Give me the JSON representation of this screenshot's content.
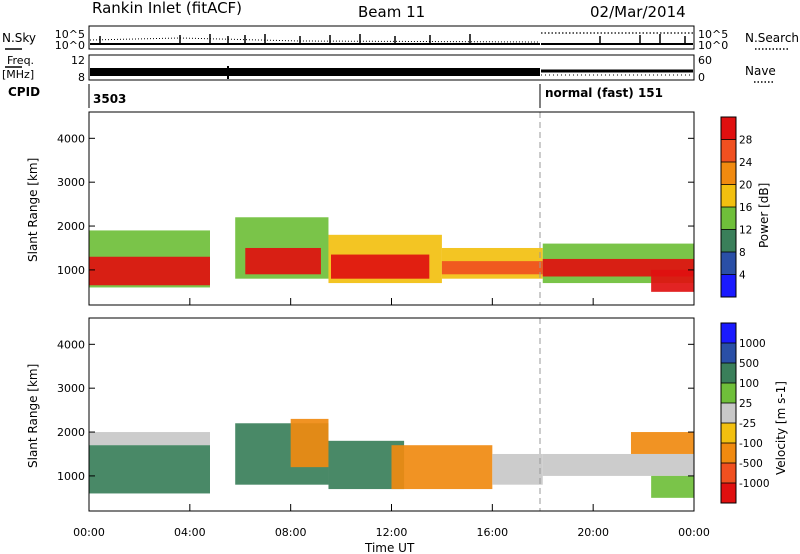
{
  "header": {
    "site": "Rankin Inlet (fitACF)",
    "beam": "Beam 11",
    "date": "02/Mar/2014"
  },
  "top_panels": {
    "nsky_label": "N.Sky",
    "nsky_ticks": [
      "10^5",
      "10^0"
    ],
    "nsearch_label": "N.Search",
    "nsearch_ticks": [
      "10^5",
      "10^0"
    ],
    "freq_label_1": "Freq.",
    "freq_label_2": "[MHz]",
    "freq_ticks": [
      "12",
      "8"
    ],
    "nave_label": "Nave",
    "nave_ticks": [
      "60",
      "0"
    ],
    "cpid_label": "CPID",
    "cpid_segments": [
      {
        "start_hour": 0,
        "text": "3503"
      },
      {
        "start_hour": 18,
        "text": "normal (fast) 151"
      }
    ]
  },
  "colors": {
    "power_scale": [
      "#1a1aff",
      "#2a4fa6",
      "#3a7f5a",
      "#6fbf3a",
      "#f2c010",
      "#f08a10",
      "#f05020",
      "#e01010"
    ],
    "velocity_scale": [
      "#e01010",
      "#f05020",
      "#f08a10",
      "#f2c010",
      "#c8c8c8",
      "#6fbf3a",
      "#3a7f5a",
      "#2a4fa6",
      "#1a1aff"
    ]
  },
  "chart_data": [
    {
      "type": "heatmap",
      "name": "power",
      "xlabel": "",
      "ylabel": "Slant Range [km]",
      "xlim": [
        "00:00",
        "24:00"
      ],
      "ylim": [
        200,
        4600
      ],
      "yticks": [
        "1000",
        "2000",
        "3000",
        "4000"
      ],
      "colorbar_label": "Power [dB]",
      "colorbar_ticks": [
        "4",
        "8",
        "12",
        "16",
        "20",
        "24",
        "28"
      ],
      "colorbar_range": [
        0,
        32
      ],
      "bands": [
        {
          "x0": 0.0,
          "x1": 4.8,
          "y0": 600,
          "y1": 1900,
          "level": 3
        },
        {
          "x0": 0.0,
          "x1": 4.8,
          "y0": 650,
          "y1": 1300,
          "level": 7
        },
        {
          "x0": 5.8,
          "x1": 9.5,
          "y0": 800,
          "y1": 2200,
          "level": 3
        },
        {
          "x0": 6.2,
          "x1": 9.2,
          "y0": 900,
          "y1": 1500,
          "level": 7
        },
        {
          "x0": 9.5,
          "x1": 14.0,
          "y0": 700,
          "y1": 1800,
          "level": 4
        },
        {
          "x0": 9.6,
          "x1": 13.5,
          "y0": 800,
          "y1": 1350,
          "level": 7
        },
        {
          "x0": 14.0,
          "x1": 18.0,
          "y0": 800,
          "y1": 1500,
          "level": 4
        },
        {
          "x0": 14.0,
          "x1": 18.0,
          "y0": 900,
          "y1": 1200,
          "level": 6
        },
        {
          "x0": 18.0,
          "x1": 24.0,
          "y0": 700,
          "y1": 1600,
          "level": 3
        },
        {
          "x0": 18.0,
          "x1": 24.0,
          "y0": 850,
          "y1": 1250,
          "level": 7
        },
        {
          "x0": 22.3,
          "x1": 24.0,
          "y0": 500,
          "y1": 1000,
          "level": 7
        }
      ]
    },
    {
      "type": "heatmap",
      "name": "velocity",
      "xlabel": "Time UT",
      "ylabel": "Slant Range [km]",
      "xlim": [
        "00:00",
        "24:00"
      ],
      "xticks": [
        "00:00",
        "04:00",
        "08:00",
        "12:00",
        "16:00",
        "20:00",
        "00:00"
      ],
      "ylim": [
        200,
        4600
      ],
      "yticks": [
        "1000",
        "2000",
        "3000",
        "4000"
      ],
      "colorbar_label": "Velocity [m s-1]",
      "colorbar_ticks": [
        "-1000",
        "-500",
        "-100",
        "-25",
        "25",
        "100",
        "500",
        "1000"
      ],
      "bands": [
        {
          "x0": 0.0,
          "x1": 4.8,
          "y0": 1700,
          "y1": 2000,
          "level": 4
        },
        {
          "x0": 0.0,
          "x1": 4.8,
          "y0": 600,
          "y1": 1700,
          "level": 6
        },
        {
          "x0": 5.8,
          "x1": 9.5,
          "y0": 800,
          "y1": 2200,
          "level": 6
        },
        {
          "x0": 8.0,
          "x1": 9.5,
          "y0": 1200,
          "y1": 2300,
          "level": 2
        },
        {
          "x0": 9.5,
          "x1": 12.5,
          "y0": 700,
          "y1": 1800,
          "level": 6
        },
        {
          "x0": 12.0,
          "x1": 16.0,
          "y0": 700,
          "y1": 1700,
          "level": 2
        },
        {
          "x0": 16.0,
          "x1": 18.0,
          "y0": 800,
          "y1": 1500,
          "level": 4
        },
        {
          "x0": 18.0,
          "x1": 24.0,
          "y0": 1000,
          "y1": 1500,
          "level": 4
        },
        {
          "x0": 21.5,
          "x1": 24.0,
          "y0": 1500,
          "y1": 2000,
          "level": 2
        },
        {
          "x0": 22.3,
          "x1": 24.0,
          "y0": 500,
          "y1": 1000,
          "level": 5
        }
      ]
    }
  ]
}
